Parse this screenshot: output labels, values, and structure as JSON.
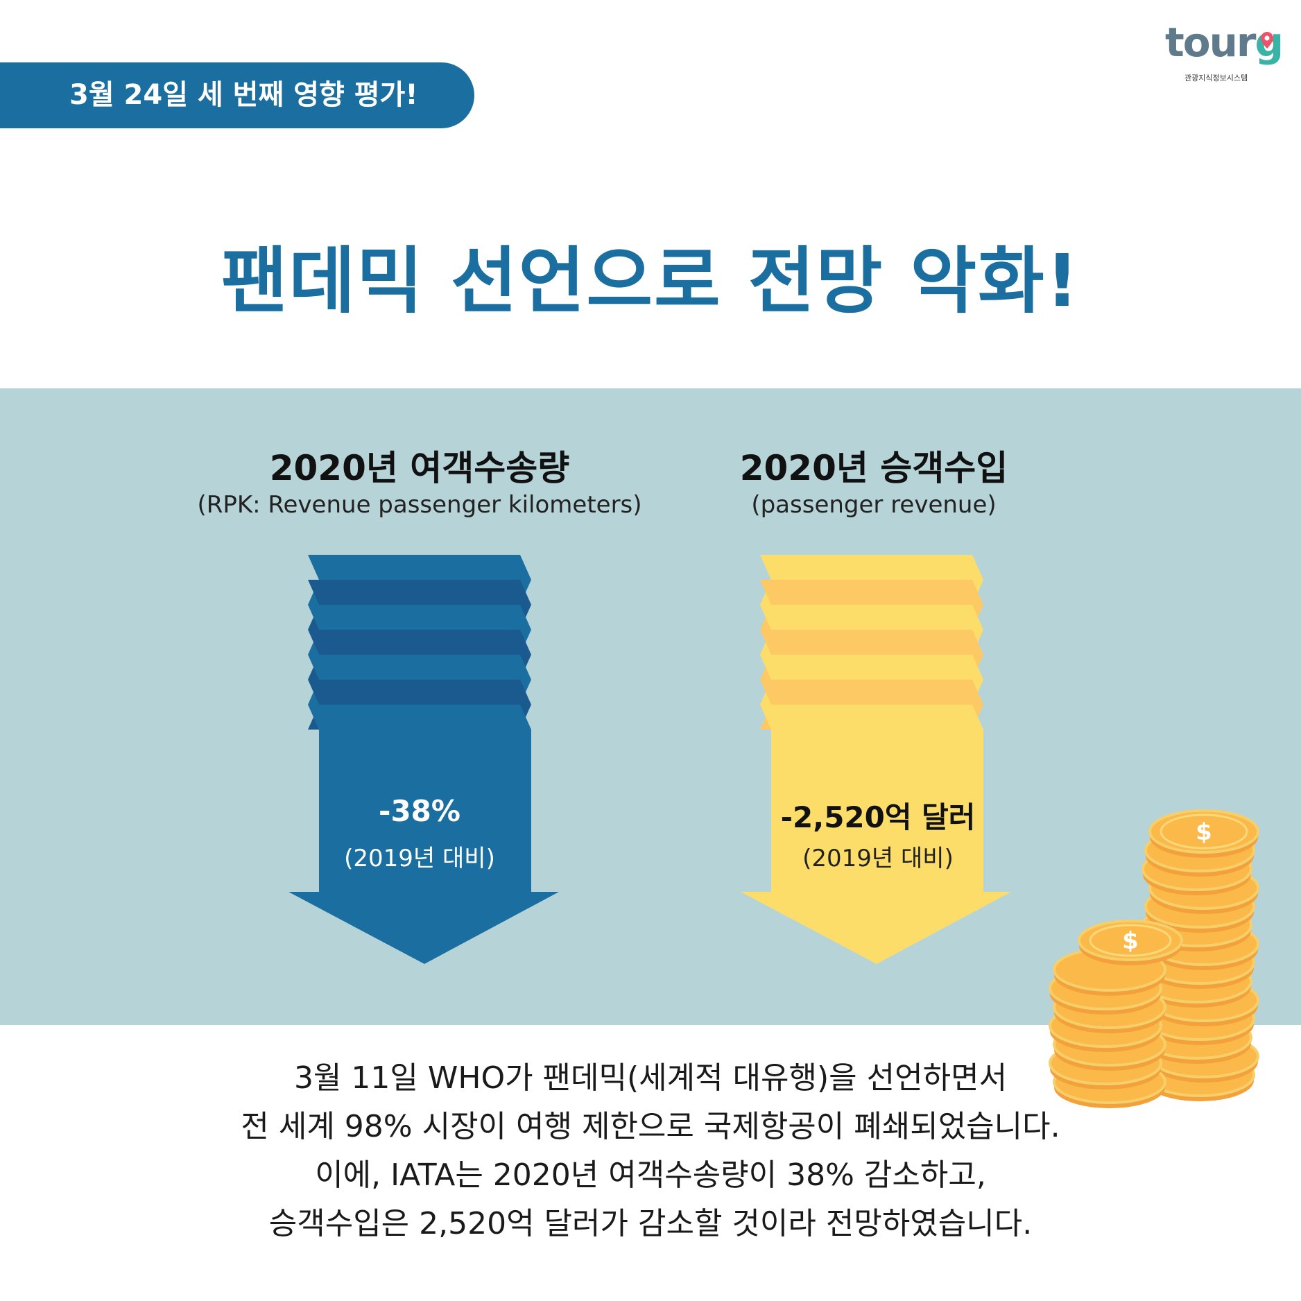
{
  "tag": {
    "text": "3월 24일 세 번째 영향 평가!"
  },
  "logo": {
    "word_main": "tour",
    "word_accent": "g",
    "subtitle": "관광지식정보시스템"
  },
  "headline": "팬데믹 선언으로 전망 악화!",
  "left": {
    "title": "2020년 여객수송량",
    "subtitle": "(RPK: Revenue passenger kilometers)",
    "value": "-38%",
    "note": "(2019년 대비)",
    "color": "#1b6ea0"
  },
  "right": {
    "title": "2020년 승객수입",
    "subtitle": "(passenger revenue)",
    "value": "-2,520억 달러",
    "note": "(2019년 대비)",
    "color": "#fcdd6a"
  },
  "body": {
    "lines": [
      "3월 11일 WHO가 팬데믹(세계적 대유행)을 선언하면서",
      "전 세계 98% 시장이 여행 제한으로 국제항공이 폐쇄되었습니다.",
      "이에, IATA는 2020년 여객수송량이 38% 감소하고,",
      "승객수입은 2,520억 달러가 감소할 것이라 전망하였습니다."
    ]
  }
}
